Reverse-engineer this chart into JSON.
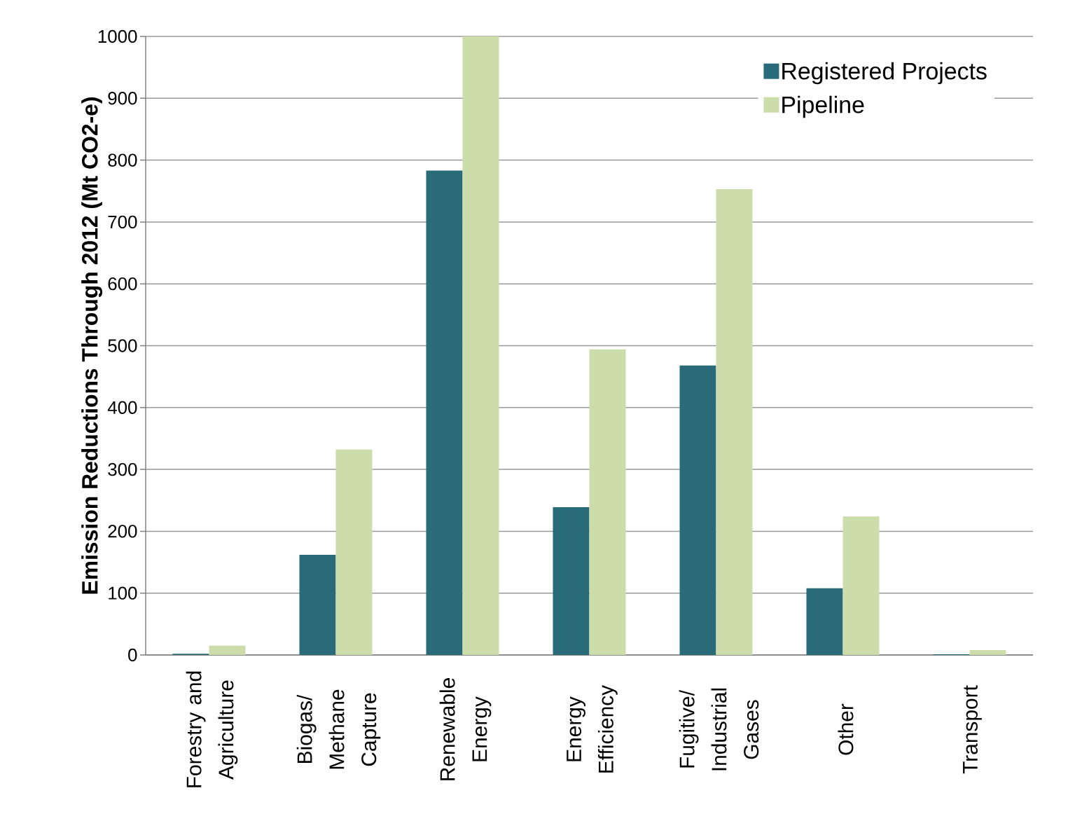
{
  "chart_data": {
    "type": "bar",
    "ylabel": "Emission Reductions Through 2012 (Mt CO2-e)",
    "categories": [
      "Forestry and Agriculture",
      "Biogas/ Methane Capture",
      "Renewable Energy",
      "Energy Efficiency",
      "Fugitive/ Industrial Gases",
      "Other",
      "Transport"
    ],
    "series": [
      {
        "name": "Registered Projects",
        "color": "#2a6b7a",
        "values": [
          2,
          162,
          783,
          239,
          468,
          108,
          1
        ]
      },
      {
        "name": "Pipeline",
        "color": "#ccdcaa",
        "values": [
          15,
          332,
          1000,
          494,
          753,
          224,
          8
        ]
      }
    ],
    "ylim": [
      0,
      1000
    ],
    "yticks": [
      0,
      100,
      200,
      300,
      400,
      500,
      600,
      700,
      800,
      900,
      1000
    ],
    "grid": "y",
    "legend": "top right"
  }
}
